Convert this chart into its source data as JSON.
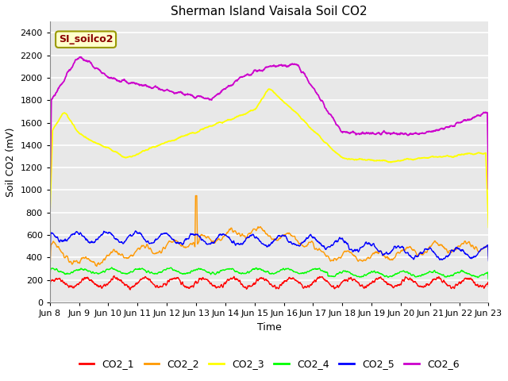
{
  "title": "Sherman Island Vaisala Soil CO2",
  "ylabel": "Soil CO2 (mV)",
  "xlabel": "Time",
  "fig_bg_color": "#ffffff",
  "plot_bg_color": "#e8e8e8",
  "grid_color": "#ffffff",
  "ylim": [
    0,
    2500
  ],
  "yticks": [
    0,
    200,
    400,
    600,
    800,
    1000,
    1200,
    1400,
    1600,
    1800,
    2000,
    2200,
    2400
  ],
  "x_tick_labels": [
    "Jun 8",
    "Jun 9",
    "Jun 10",
    "Jun 11",
    "Jun 12",
    "Jun 13",
    "Jun 14",
    "Jun 15",
    "Jun 16",
    "Jun 17",
    "Jun 18",
    "Jun 19",
    "Jun 20",
    "Jun 21",
    "Jun 22",
    "Jun 23"
  ],
  "series_colors": {
    "CO2_1": "#ff0000",
    "CO2_2": "#ff9900",
    "CO2_3": "#ffff00",
    "CO2_4": "#00ff00",
    "CO2_5": "#0000ff",
    "CO2_6": "#cc00cc"
  },
  "legend_label": "SI_soilco2",
  "legend_bg": "#ffffcc",
  "legend_border": "#999900",
  "legend_text_color": "#8b0000"
}
